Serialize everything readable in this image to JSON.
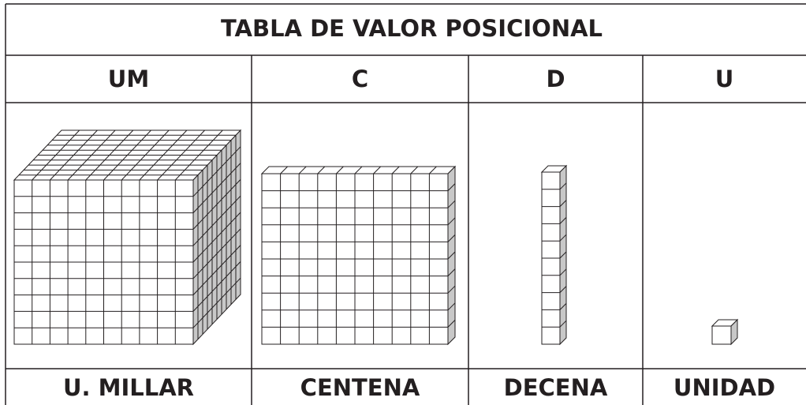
{
  "title": "TABLA DE VALOR POSICIONAL",
  "columns": [
    {
      "header": "UM",
      "name": "U. MILLAR"
    },
    {
      "header": "C",
      "name": "CENTENA"
    },
    {
      "header": "D",
      "name": "DECENA"
    },
    {
      "header": "U",
      "name": "UNIDAD"
    }
  ]
}
